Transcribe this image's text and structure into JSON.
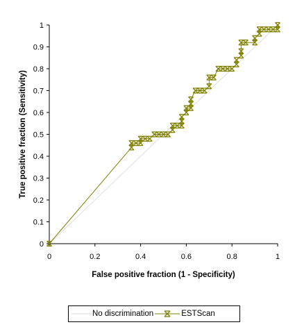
{
  "chart_data": {
    "type": "line",
    "xlabel": "False positive fraction (1 - Specificity)",
    "ylabel": "True positive fraction (Sensitivity)",
    "xlim": [
      0,
      1
    ],
    "ylim": [
      0,
      1
    ],
    "xticks": [
      "0",
      "0.2",
      "0.4",
      "0.6",
      "0.8",
      "1"
    ],
    "yticks": [
      "0",
      "0.1",
      "0.2",
      "0.3",
      "0.4",
      "0.5",
      "0.6",
      "0.7",
      "0.8",
      "0.9",
      "1"
    ],
    "grid": false,
    "legend_position": "bottom",
    "series": [
      {
        "name": "No discrimination",
        "color": "#d8d8d8",
        "marker": "none",
        "x": [
          0,
          1
        ],
        "y": [
          0,
          1
        ]
      },
      {
        "name": "ESTScan",
        "color": "#808000",
        "marker": "x-bar",
        "x": [
          0,
          0.36,
          0.36,
          0.38,
          0.4,
          0.4,
          0.42,
          0.44,
          0.46,
          0.48,
          0.5,
          0.52,
          0.54,
          0.54,
          0.56,
          0.58,
          0.58,
          0.58,
          0.6,
          0.6,
          0.62,
          0.62,
          0.62,
          0.64,
          0.66,
          0.68,
          0.7,
          0.7,
          0.72,
          0.74,
          0.76,
          0.78,
          0.8,
          0.82,
          0.82,
          0.84,
          0.84,
          0.84,
          0.86,
          0.9,
          0.9,
          0.92,
          0.92,
          0.94,
          0.96,
          0.98,
          1.0,
          1.0
        ],
        "y": [
          0,
          0.44,
          0.46,
          0.46,
          0.46,
          0.48,
          0.48,
          0.48,
          0.5,
          0.5,
          0.5,
          0.5,
          0.52,
          0.54,
          0.54,
          0.54,
          0.56,
          0.58,
          0.6,
          0.62,
          0.62,
          0.64,
          0.66,
          0.7,
          0.7,
          0.7,
          0.72,
          0.76,
          0.76,
          0.8,
          0.8,
          0.8,
          0.8,
          0.82,
          0.84,
          0.86,
          0.88,
          0.92,
          0.92,
          0.92,
          0.94,
          0.96,
          0.98,
          0.98,
          0.98,
          0.98,
          0.98,
          1.0
        ]
      }
    ]
  }
}
